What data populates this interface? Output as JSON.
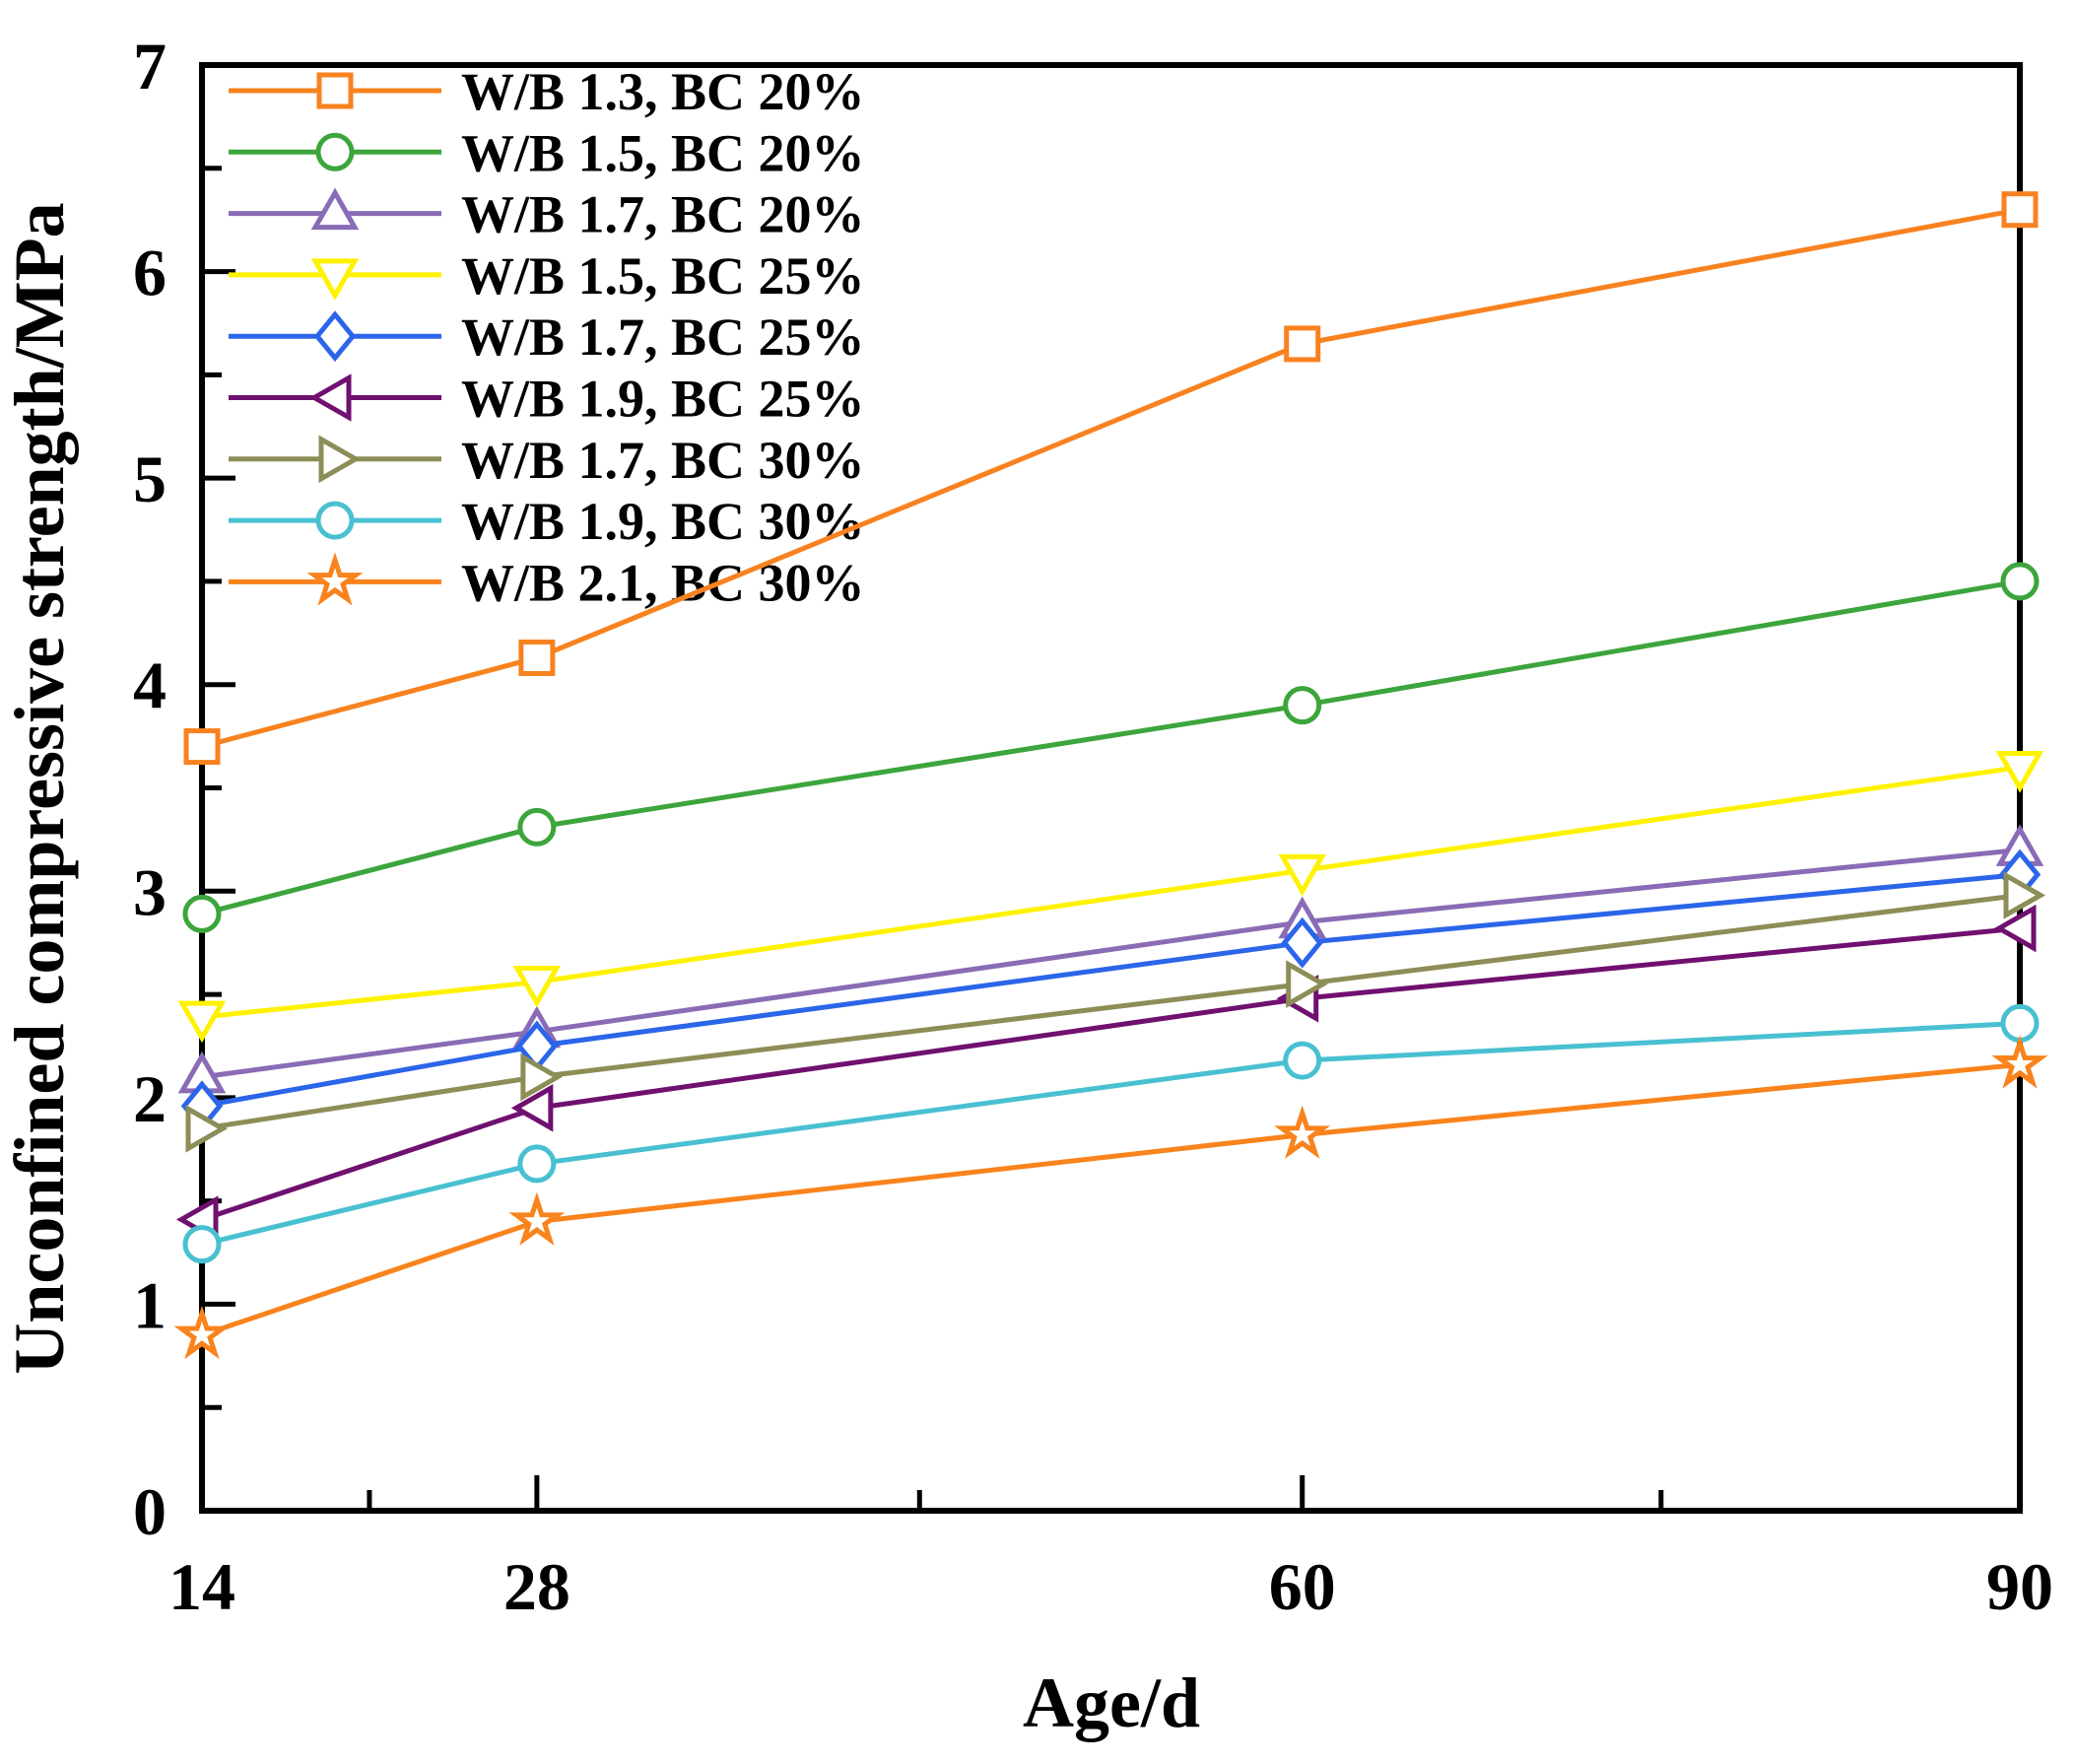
{
  "chart_data": {
    "type": "line",
    "xlabel": "Age/d",
    "ylabel": "Unconfined compressive strength/MPa",
    "x": [
      14,
      28,
      60,
      90
    ],
    "xlim": [
      14,
      90
    ],
    "ylim": [
      0,
      7
    ],
    "x_tick_labels": [
      "14",
      "28",
      "60",
      "90"
    ],
    "x_major_ticks": [
      28,
      60
    ],
    "x_minor_ticks": [
      21,
      44,
      75
    ],
    "y_tick_labels": [
      "0",
      "1",
      "2",
      "3",
      "4",
      "5",
      "6",
      "7"
    ],
    "y_major_ticks": [
      1,
      2,
      3,
      4,
      5,
      6
    ],
    "y_minor_ticks": [
      0.5,
      1.5,
      2.5,
      3.5,
      4.5,
      5.5,
      6.5
    ],
    "grid": false,
    "legend_position": "top-left",
    "axis_color": "#000000",
    "marker_fill": "#ffffff",
    "series": [
      {
        "name": "W/B 1.3, BC 20%",
        "color": "#F8821F",
        "marker": "square",
        "values": [
          3.7,
          4.13,
          5.65,
          6.3
        ]
      },
      {
        "name": "W/B 1.5, BC 20%",
        "color": "#3CA53C",
        "marker": "circle",
        "values": [
          2.89,
          3.31,
          3.9,
          4.5
        ]
      },
      {
        "name": "W/B 1.7, BC 20%",
        "color": "#8A6BB5",
        "marker": "triangle-up",
        "values": [
          2.1,
          2.32,
          2.85,
          3.2
        ]
      },
      {
        "name": "W/B 1.5, BC 25%",
        "color": "#FFF200",
        "marker": "triangle-down",
        "values": [
          2.39,
          2.56,
          3.1,
          3.6
        ]
      },
      {
        "name": "W/B 1.7, BC 25%",
        "color": "#2B65E9",
        "marker": "diamond",
        "values": [
          1.96,
          2.25,
          2.75,
          3.08
        ]
      },
      {
        "name": "W/B 1.9, BC 25%",
        "color": "#701070",
        "marker": "triangle-left",
        "values": [
          1.41,
          1.95,
          2.48,
          2.82
        ]
      },
      {
        "name": "W/B 1.7, BC 30%",
        "color": "#8D8D57",
        "marker": "triangle-right",
        "values": [
          1.85,
          2.1,
          2.55,
          2.98
        ]
      },
      {
        "name": "W/B 1.9, BC 30%",
        "color": "#49C0D1",
        "marker": "circle",
        "values": [
          1.29,
          1.68,
          2.18,
          2.36
        ]
      },
      {
        "name": "W/B 2.1, BC 30%",
        "color": "#F9831C",
        "marker": "star",
        "values": [
          0.85,
          1.4,
          1.82,
          2.16
        ]
      }
    ]
  }
}
